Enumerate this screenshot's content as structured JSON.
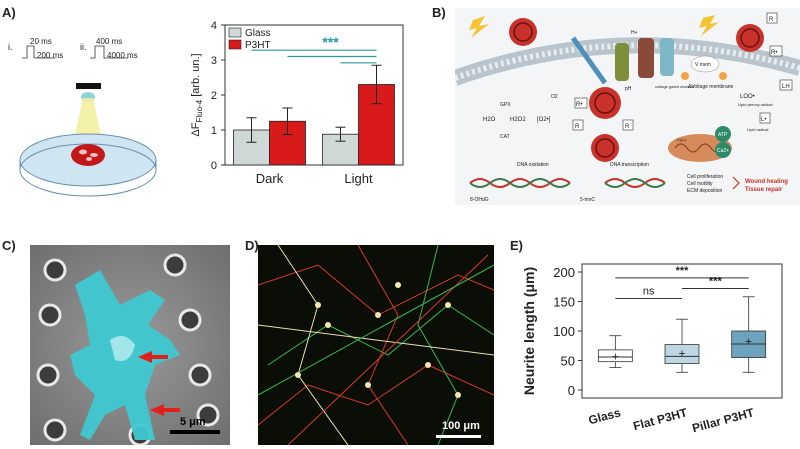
{
  "panels": {
    "a": {
      "label": "A)",
      "stim": {
        "i": "i.",
        "i_on": "20 ms",
        "i_off": "200 ms",
        "ii": "ii.",
        "ii_on": "400 ms",
        "ii_off": "4000 ms"
      }
    },
    "b": {
      "label": "B)",
      "labels": {
        "h": "H+",
        "ph": "pH",
        "vgc": "voltage gated channel",
        "vmem": "V mem",
        "dv": "ΔVoltage membrane",
        "r": "R",
        "rdot": "R•",
        "lh": "LH",
        "loo": "LOO•",
        "lipid_perox": "Lipid peroxy radical",
        "ldot": "L•",
        "lipid_rad": "Lipid radical",
        "o2": "O2",
        "gpx": "GPX",
        "h2o": "H2O",
        "h2o2": "H2O2",
        "o2r": "[O2•]",
        "cat": "CAT",
        "cytc": "Cyt-c",
        "atp": "ATP",
        "ca": "Ca2+",
        "dna_ox": "DNA oxidation",
        "dna_tr": "DNA transcription",
        "ohdg": "8-OHdG",
        "hmc": "5-hmC",
        "prolif": "Cell proliferation",
        "motil": "Cell motility",
        "ecm": "ECM deposition",
        "wound": "Wound healing",
        "tissue": "Tissue repair"
      }
    },
    "c": {
      "label": "C)",
      "scale": "5 μm"
    },
    "d": {
      "label": "D)",
      "scale": "100 μm"
    },
    "e": {
      "label": "E)"
    }
  },
  "chart_data": [
    {
      "type": "bar",
      "ylabel": "ΔF",
      "ylabel_sub": "Fluo-4",
      "ylabel_unit": "[arb. un.]",
      "categories": [
        "Dark",
        "Light"
      ],
      "series": [
        {
          "name": "Glass",
          "color": "#cfd8d6",
          "values": [
            1.0,
            0.88
          ],
          "errors": [
            0.35,
            0.2
          ]
        },
        {
          "name": "P3HT",
          "color": "#d91a1a",
          "values": [
            1.25,
            2.3
          ],
          "errors": [
            0.38,
            0.55
          ]
        }
      ],
      "ylim": [
        0,
        4
      ],
      "yticks": [
        0,
        1,
        2,
        3,
        4
      ],
      "significance": "***",
      "legend": "top-left"
    },
    {
      "type": "box",
      "ylabel": "Neurite length (μm)",
      "categories": [
        "Glass",
        "Flat P3HT",
        "Pillar P3HT"
      ],
      "boxes": [
        {
          "min": 38,
          "q1": 48,
          "median": 56,
          "q3": 68,
          "max": 92,
          "mean": 57,
          "color": "#ffffff"
        },
        {
          "min": 30,
          "q1": 45,
          "median": 57,
          "q3": 77,
          "max": 120,
          "mean": 62,
          "color": "#bcd6e3"
        },
        {
          "min": 30,
          "q1": 55,
          "median": 78,
          "q3": 100,
          "max": 158,
          "mean": 82,
          "color": "#6da3bf"
        }
      ],
      "ylim": [
        0,
        200
      ],
      "yticks": [
        0,
        50,
        100,
        150,
        200
      ],
      "significance": [
        {
          "from": 0,
          "to": 1,
          "text": "ns"
        },
        {
          "from": 1,
          "to": 2,
          "text": "***"
        },
        {
          "from": 0,
          "to": 2,
          "text": "***"
        }
      ]
    }
  ]
}
